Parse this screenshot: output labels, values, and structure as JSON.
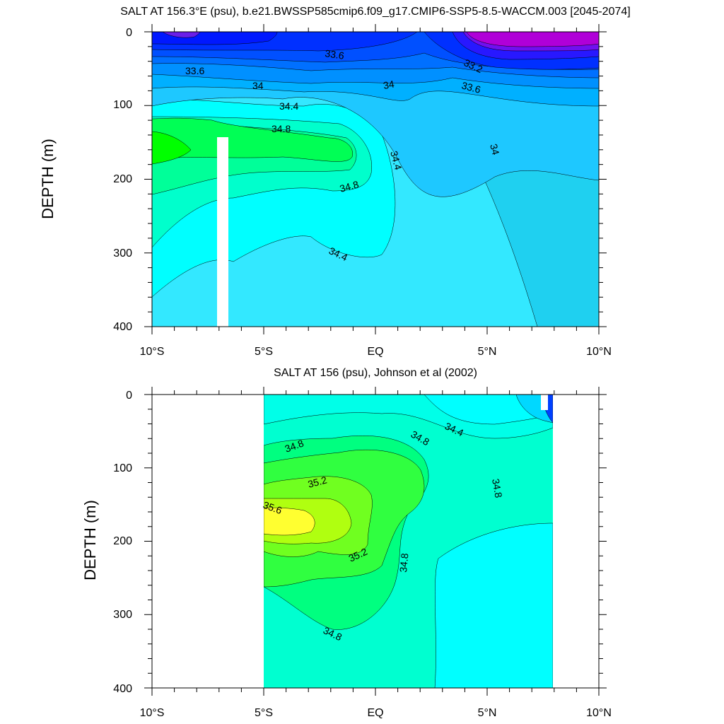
{
  "chart_data": [
    {
      "type": "heatmap",
      "title": "SALT AT 156.3°E (psu), b.e21.BWSSP585cmip6.f09_g17.CMIP6-SSP5-8.5-WACCM.003 [2045-2074]",
      "ylabel": "DEPTH (m)",
      "xlabel": "",
      "x_tick_labels": [
        "10°S",
        "5°S",
        "EQ",
        "5°N",
        "10°N"
      ],
      "y_tick_labels": [
        "0",
        "100",
        "200",
        "300",
        "400"
      ],
      "xlim": [
        -10,
        10
      ],
      "ylim": [
        400,
        0
      ],
      "contour_labels": [
        "33.6",
        "33.6",
        "33.2",
        "34",
        "34",
        "33.6",
        "34.4",
        "34.8",
        "34",
        "34.4",
        "34.8",
        "34.4"
      ],
      "colors": {
        "low": "#c000d0",
        "mid_low": "#0018ff",
        "mid": "#1e90ff",
        "cyan": "#00ffff",
        "green": "#00ff00"
      },
      "missing_band_label": ""
    },
    {
      "type": "heatmap",
      "title": "SALT AT 156 (psu), Johnson et al (2002)",
      "ylabel": "DEPTH (m)",
      "xlabel": "",
      "x_tick_labels": [
        "10°S",
        "5°S",
        "EQ",
        "5°N",
        "10°N"
      ],
      "y_tick_labels": [
        "0",
        "100",
        "200",
        "300",
        "400"
      ],
      "xlim": [
        -10,
        10
      ],
      "ylim": [
        400,
        0
      ],
      "data_extent_x": [
        -5,
        8
      ],
      "contour_labels": [
        "34.8",
        "34.8",
        "34.4",
        "35.2",
        "35.6",
        "34.8",
        "35.2",
        "34.8",
        "34.8"
      ],
      "colors": {
        "high": "#ffff30",
        "green": "#40ff40",
        "teal": "#00ffd0",
        "cyan": "#00ffff"
      }
    }
  ]
}
